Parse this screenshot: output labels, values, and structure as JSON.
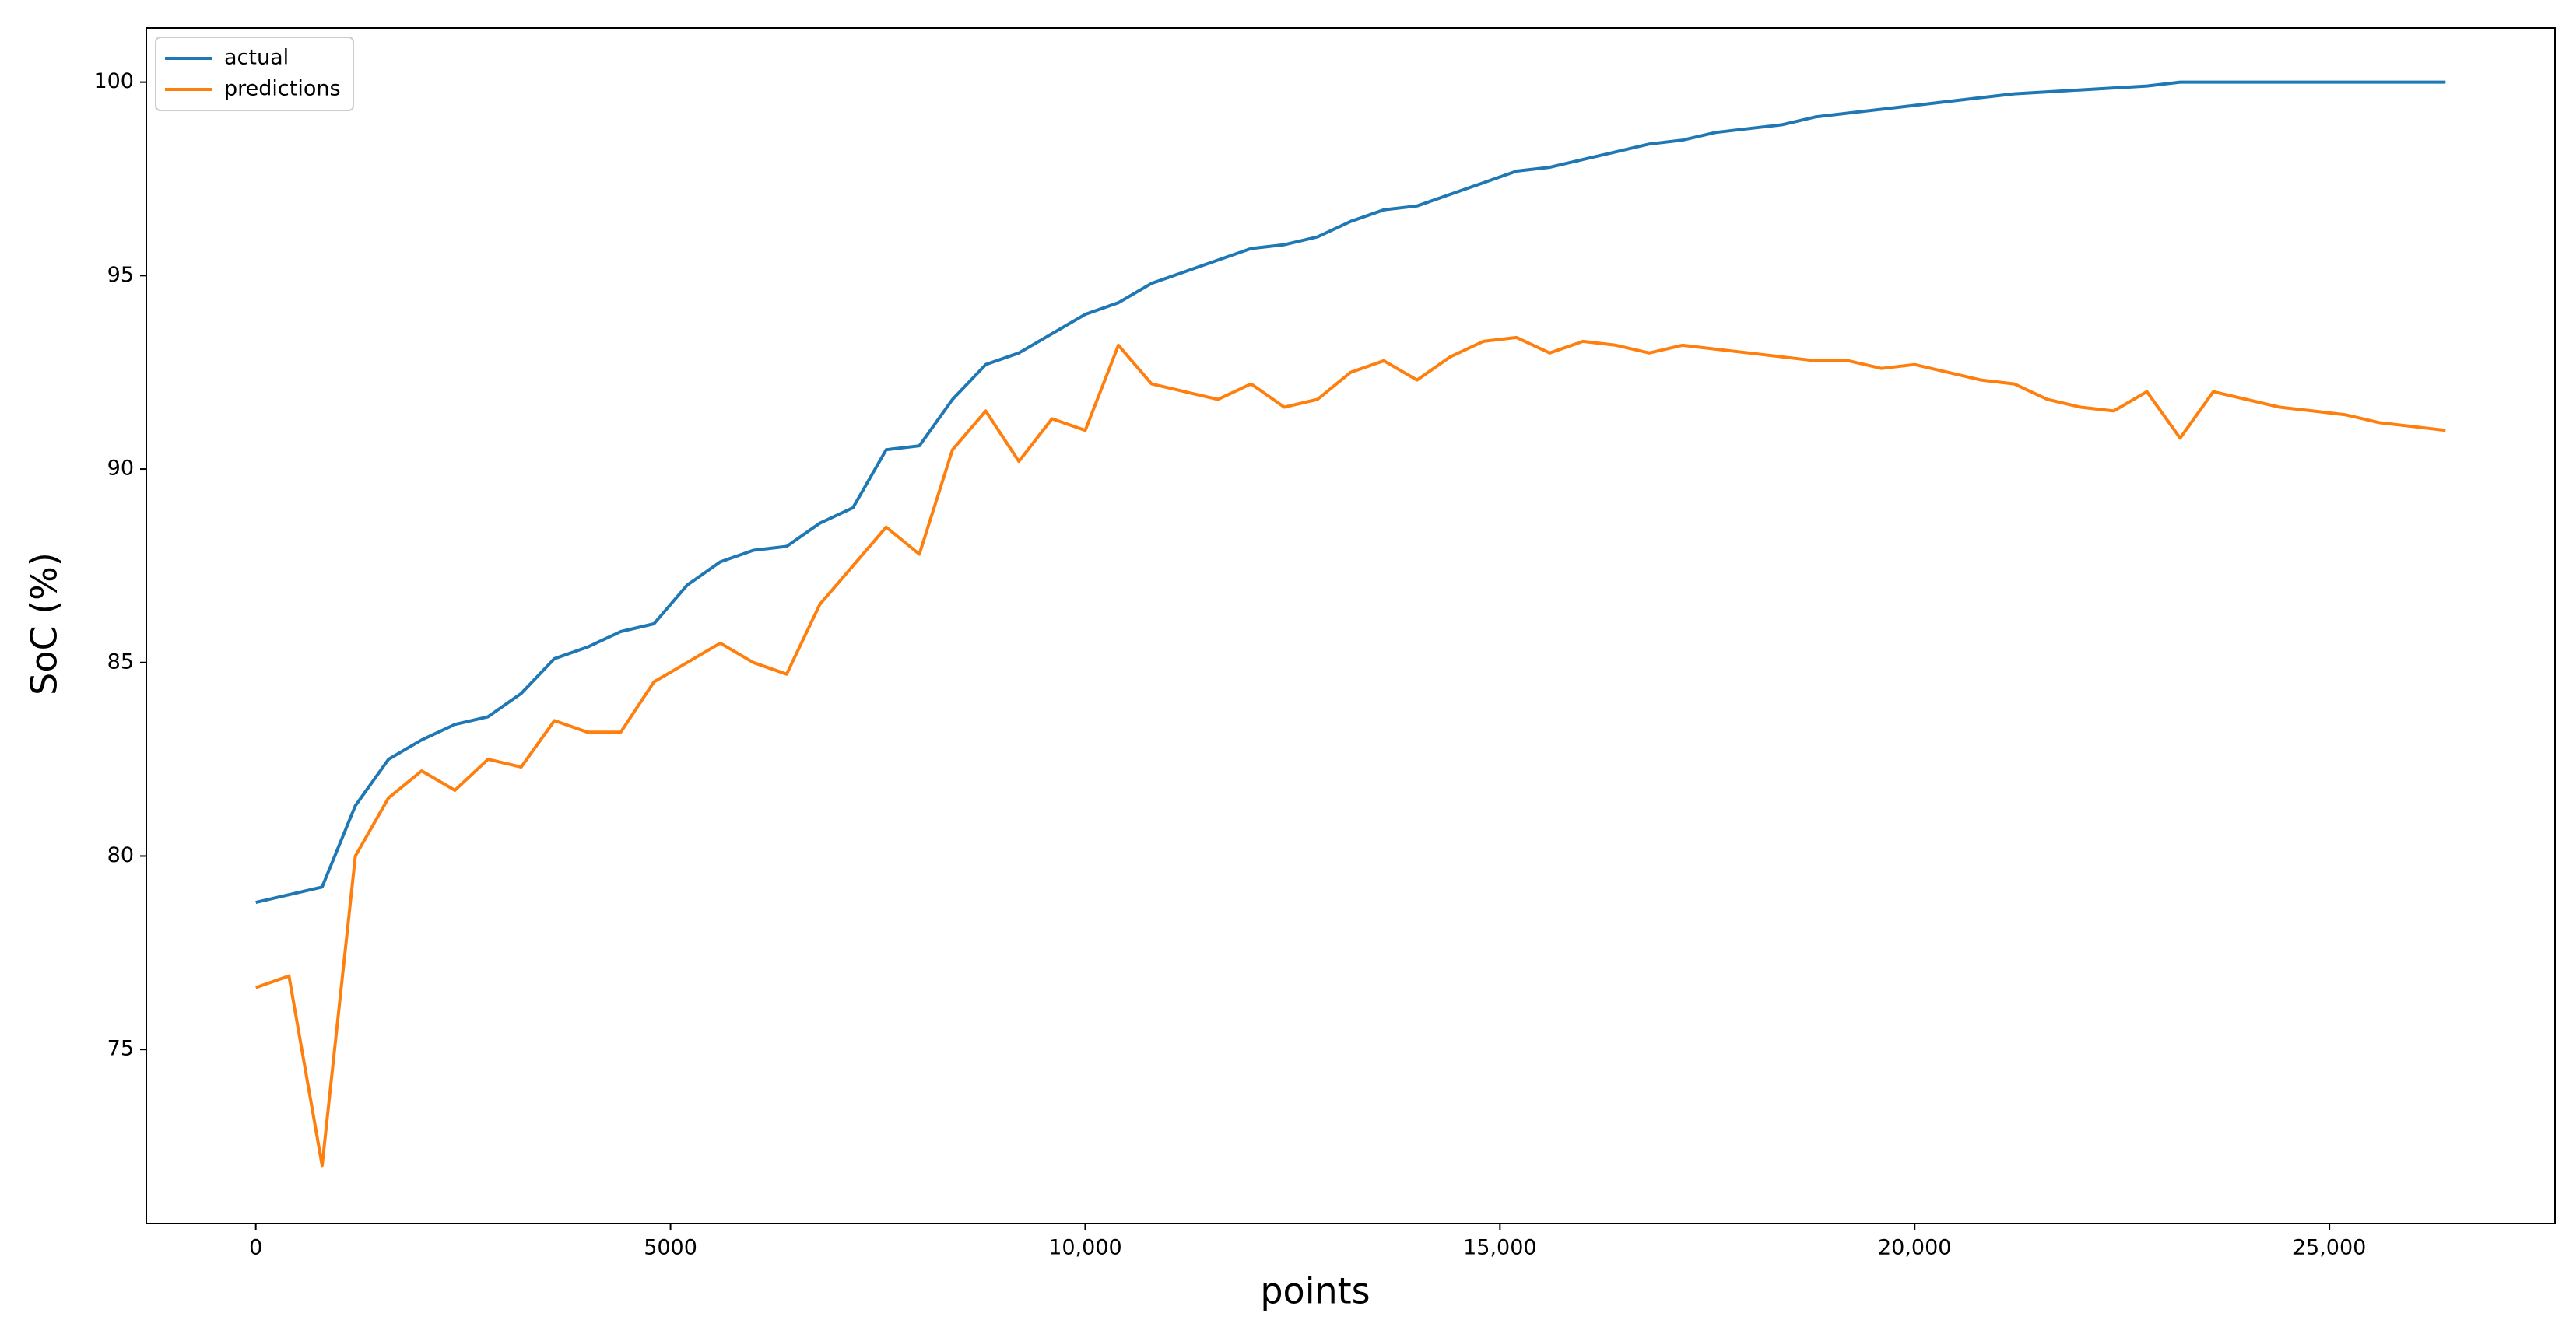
{
  "chart_data": {
    "type": "line",
    "xlabel": "points",
    "ylabel": "SoC (%)",
    "x": [
      0,
      400,
      800,
      1200,
      1600,
      2000,
      2400,
      2800,
      3200,
      3600,
      4000,
      4400,
      4800,
      5200,
      5600,
      6000,
      6400,
      6800,
      7200,
      7600,
      8000,
      8400,
      8800,
      9200,
      9600,
      10000,
      10400,
      10800,
      11200,
      11600,
      12000,
      12400,
      12800,
      13200,
      13600,
      14000,
      14400,
      14800,
      15200,
      15600,
      16000,
      16400,
      16800,
      17200,
      17600,
      18000,
      18400,
      18800,
      19200,
      19600,
      20000,
      20400,
      20800,
      21200,
      21600,
      22000,
      22400,
      22800,
      23200,
      23600,
      24000,
      24400,
      24800,
      25200,
      25600,
      26000,
      26400
    ],
    "series": [
      {
        "name": "actual",
        "color": "#1f77b4",
        "values": [
          78.8,
          79.0,
          79.2,
          81.3,
          82.5,
          83.0,
          83.4,
          83.6,
          84.2,
          85.1,
          85.4,
          85.8,
          86.0,
          87.0,
          87.6,
          87.9,
          88.0,
          88.6,
          89.0,
          90.5,
          90.6,
          91.8,
          92.7,
          93.0,
          93.5,
          94.0,
          94.3,
          94.8,
          95.1,
          95.4,
          95.7,
          95.8,
          96.0,
          96.4,
          96.7,
          96.8,
          97.1,
          97.4,
          97.7,
          97.8,
          98.0,
          98.2,
          98.4,
          98.5,
          98.7,
          98.8,
          98.9,
          99.1,
          99.2,
          99.3,
          99.4,
          99.5,
          99.6,
          99.7,
          99.75,
          99.8,
          99.85,
          99.9,
          100,
          100,
          100,
          100,
          100,
          100,
          100,
          100,
          100
        ]
      },
      {
        "name": "predictions",
        "color": "#ff7f0e",
        "values": [
          76.6,
          76.9,
          72.0,
          80.0,
          81.5,
          82.2,
          81.7,
          82.5,
          82.3,
          83.5,
          83.2,
          83.2,
          84.5,
          85.0,
          85.5,
          85.0,
          84.7,
          86.5,
          87.5,
          88.5,
          87.8,
          90.5,
          91.5,
          90.2,
          91.3,
          91.0,
          93.2,
          92.2,
          92.0,
          91.8,
          92.2,
          91.6,
          91.8,
          92.5,
          92.8,
          92.3,
          92.9,
          93.3,
          93.4,
          93.0,
          93.3,
          93.2,
          93.0,
          93.2,
          93.1,
          93.0,
          92.9,
          92.8,
          92.8,
          92.6,
          92.7,
          92.5,
          92.3,
          92.2,
          91.8,
          91.6,
          91.5,
          92.0,
          90.8,
          92.0,
          91.8,
          91.6,
          91.5,
          91.4,
          91.2,
          91.1,
          91.0
        ]
      }
    ],
    "xlim": [
      -1320,
      27720
    ],
    "xticks": [
      0,
      5000,
      {
        "value": 10000,
        "label": "10,000"
      },
      {
        "value": 15000,
        "label": "15,000"
      },
      {
        "value": 20000,
        "label": "20,000"
      },
      {
        "value": 25000,
        "label": "25,000"
      }
    ],
    "ylim": [
      70.5,
      101.4
    ],
    "yticks": [
      75,
      80,
      85,
      90,
      95,
      100
    ],
    "grid": false,
    "legend": "upper left"
  }
}
